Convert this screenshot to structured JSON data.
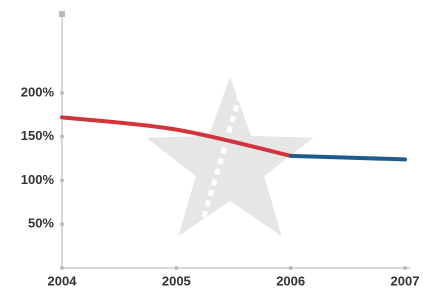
{
  "chart_data": {
    "type": "line",
    "categories": [
      "2004",
      "2005",
      "2006",
      "2007"
    ],
    "category_label_colors": [
      "#333333",
      "#333333",
      "#333333",
      "#1f5b8c"
    ],
    "series": [
      {
        "color": "#d3343c",
        "values": [
          172,
          158,
          128,
          null
        ]
      },
      {
        "color": "#1f5b8c",
        "values": [
          null,
          null,
          128,
          124
        ]
      }
    ],
    "ylim": [
      0,
      290
    ],
    "yticks": [
      {
        "value": 50,
        "label": "50%"
      },
      {
        "value": 100,
        "label": "100%"
      },
      {
        "value": 150,
        "label": "150%"
      },
      {
        "value": 200,
        "label": "200%"
      }
    ],
    "grid": false
  }
}
